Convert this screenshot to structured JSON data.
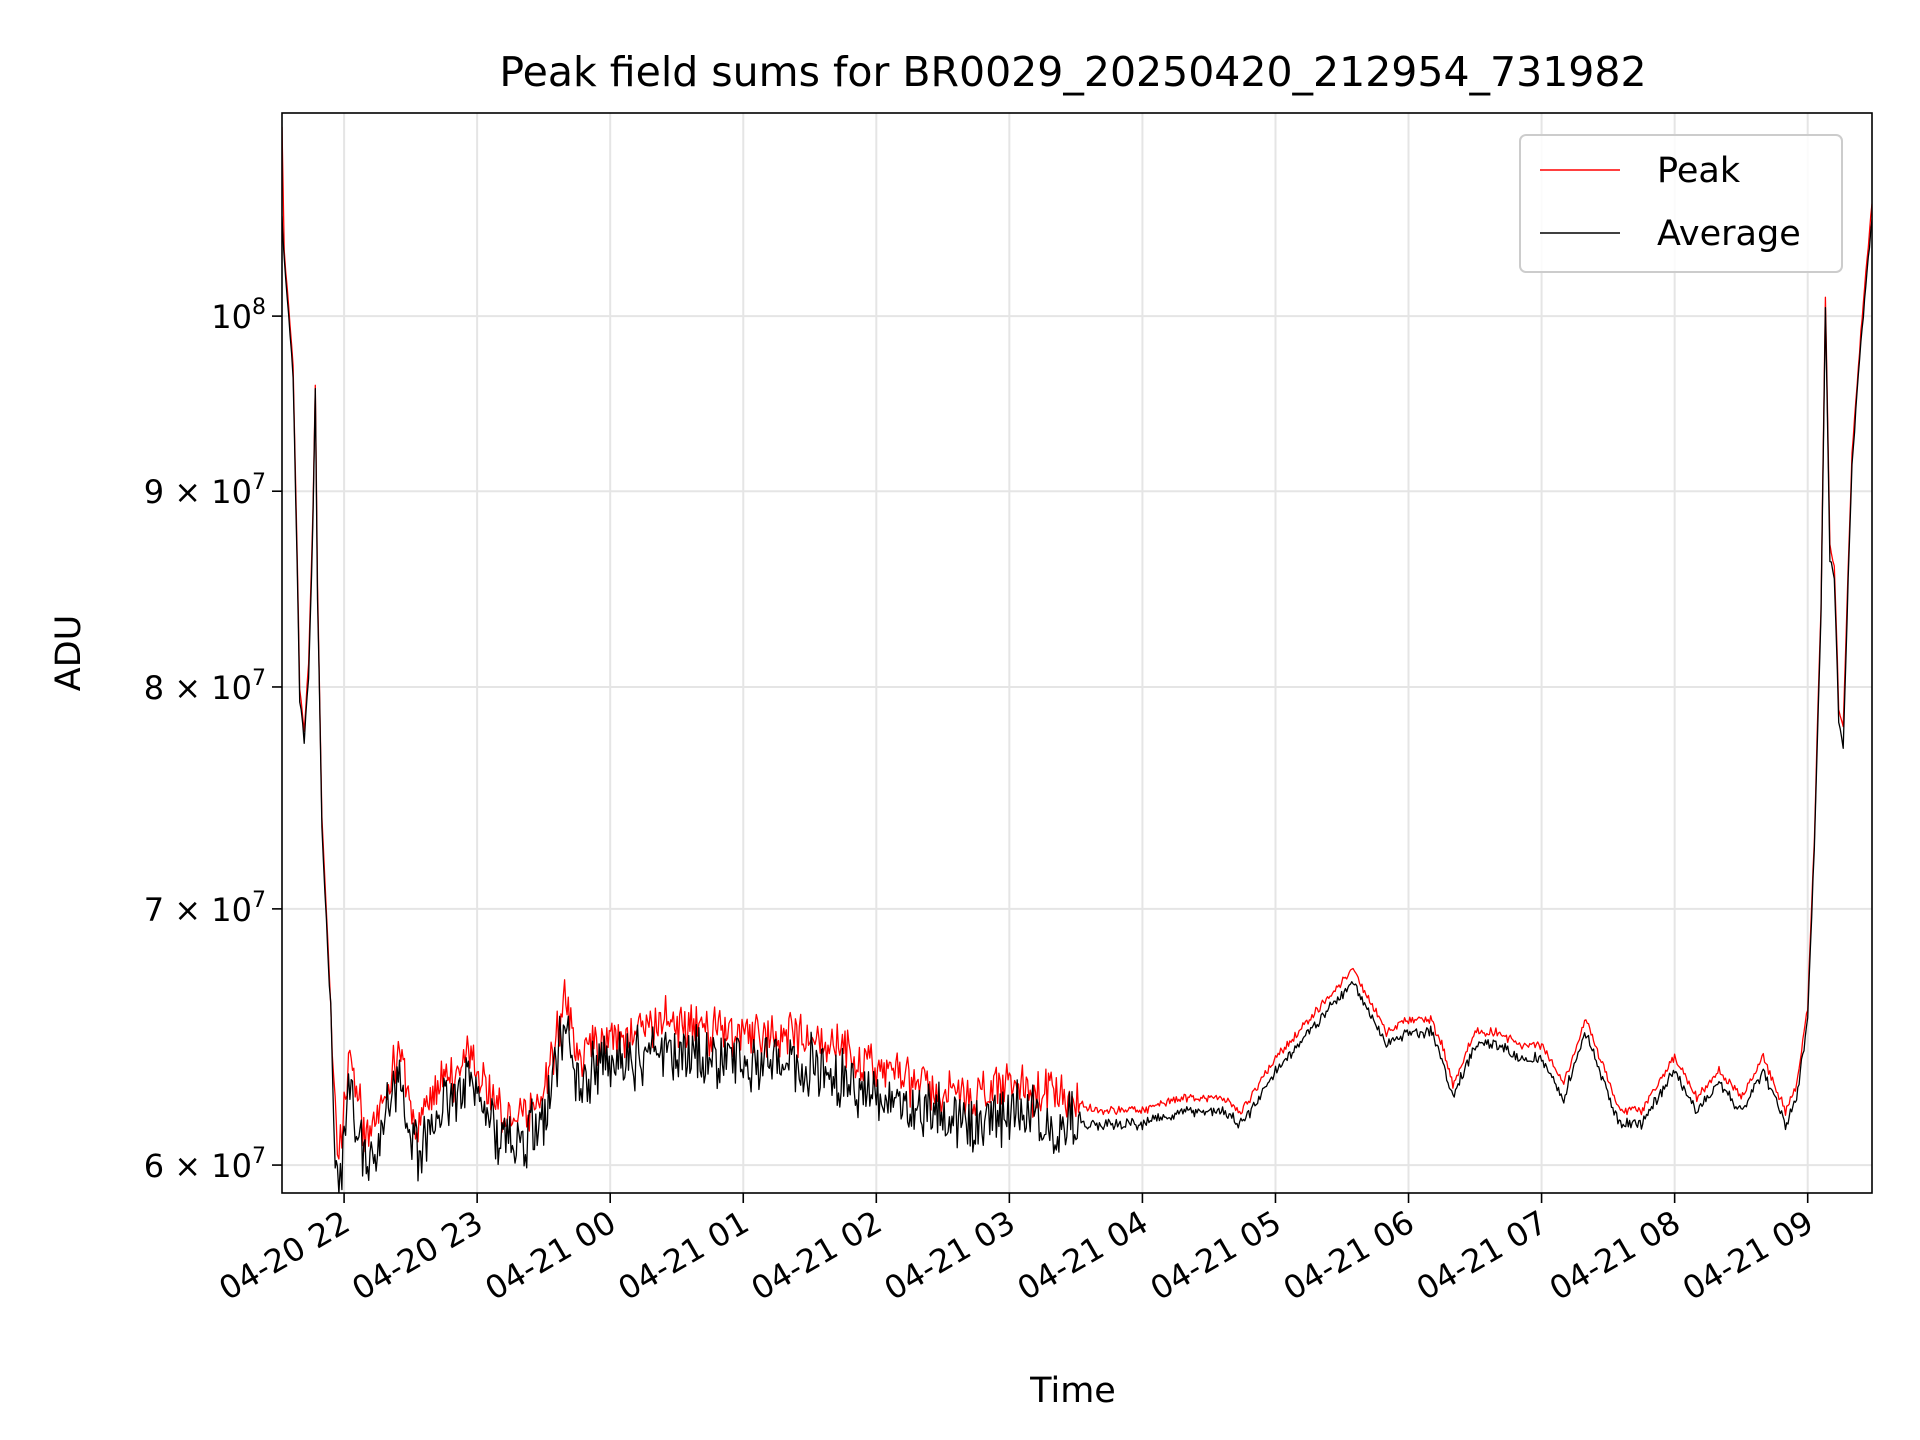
{
  "colors": {
    "peak": "#ff0000",
    "average": "#000000",
    "grid": "#e5e5e5",
    "axis": "#000000",
    "legend_border": "#cccccc"
  },
  "chart_data": {
    "type": "line",
    "title": "Peak field sums for BR0029_20250420_212954_731982",
    "xlabel": "Time",
    "ylabel": "ADU",
    "yscale": "log",
    "xlim": [
      "2025-04-20 21:32",
      "2025-04-21 09:29"
    ],
    "ylim": [
      59000000,
      113000000
    ],
    "grid": true,
    "legend_position": "top-right",
    "x_ticks": [
      "2025-04-20 22:00",
      "2025-04-20 23:00",
      "2025-04-21 00:00",
      "2025-04-21 01:00",
      "2025-04-21 02:00",
      "2025-04-21 03:00",
      "2025-04-21 04:00",
      "2025-04-21 05:00",
      "2025-04-21 06:00",
      "2025-04-21 07:00",
      "2025-04-21 08:00",
      "2025-04-21 09:00"
    ],
    "x_tick_labels": [
      "04-20 22",
      "04-20 23",
      "04-21 00",
      "04-21 01",
      "04-21 02",
      "04-21 03",
      "04-21 04",
      "04-21 05",
      "04-21 06",
      "04-21 07",
      "04-21 08",
      "04-21 09"
    ],
    "y_ticks": [
      {
        "value": 100000000,
        "label": "10",
        "exp": "8",
        "mult": ""
      },
      {
        "value": 90000000,
        "label": "9 × 10",
        "exp": "7",
        "mult": ""
      },
      {
        "value": 80000000,
        "label": "8 × 10",
        "exp": "7",
        "mult": ""
      },
      {
        "value": 70000000,
        "label": "7 × 10",
        "exp": "7",
        "mult": ""
      },
      {
        "value": 60000000,
        "label": "6 × 10",
        "exp": "7",
        "mult": ""
      }
    ],
    "series": [
      {
        "name": "Peak",
        "color": "#ff0000",
        "jitter": 2000000,
        "x": [
          "2025-04-20 21:32",
          "2025-04-20 21:33",
          "2025-04-20 21:35",
          "2025-04-20 21:37",
          "2025-04-20 21:40",
          "2025-04-20 21:42",
          "2025-04-20 21:44",
          "2025-04-20 21:46",
          "2025-04-20 21:47",
          "2025-04-20 21:48",
          "2025-04-20 21:50",
          "2025-04-20 21:52",
          "2025-04-20 21:54",
          "2025-04-20 21:56",
          "2025-04-20 21:57",
          "2025-04-20 21:59",
          "2025-04-20 22:00",
          "2025-04-20 22:02",
          "2025-04-20 22:05",
          "2025-04-20 22:10",
          "2025-04-20 22:15",
          "2025-04-20 22:20",
          "2025-04-20 22:25",
          "2025-04-20 22:30",
          "2025-04-20 22:35",
          "2025-04-20 22:40",
          "2025-04-20 22:45",
          "2025-04-20 22:50",
          "2025-04-20 22:55",
          "2025-04-20 23:00",
          "2025-04-20 23:05",
          "2025-04-20 23:10",
          "2025-04-20 23:20",
          "2025-04-20 23:30",
          "2025-04-20 23:35",
          "2025-04-20 23:40",
          "2025-04-20 23:45",
          "2025-04-20 23:55",
          "2025-04-21 00:10",
          "2025-04-21 00:25",
          "2025-04-21 00:40",
          "2025-04-21 01:00",
          "2025-04-21 01:20",
          "2025-04-21 01:40",
          "2025-04-21 02:00",
          "2025-04-21 02:20",
          "2025-04-21 02:40",
          "2025-04-21 03:00",
          "2025-04-21 03:20",
          "2025-04-21 03:40",
          "2025-04-21 04:00",
          "2025-04-21 04:20",
          "2025-04-21 04:35",
          "2025-04-21 04:45",
          "2025-04-21 05:00",
          "2025-04-21 05:10",
          "2025-04-21 05:20",
          "2025-04-21 05:35",
          "2025-04-21 05:50",
          "2025-04-21 06:00",
          "2025-04-21 06:10",
          "2025-04-21 06:15",
          "2025-04-21 06:20",
          "2025-04-21 06:30",
          "2025-04-21 06:40",
          "2025-04-21 06:50",
          "2025-04-21 07:00",
          "2025-04-21 07:10",
          "2025-04-21 07:20",
          "2025-04-21 07:35",
          "2025-04-21 07:45",
          "2025-04-21 08:00",
          "2025-04-21 08:10",
          "2025-04-21 08:20",
          "2025-04-21 08:30",
          "2025-04-21 08:40",
          "2025-04-21 08:50",
          "2025-04-21 08:55",
          "2025-04-21 09:00",
          "2025-04-21 09:03",
          "2025-04-21 09:06",
          "2025-04-21 09:08",
          "2025-04-21 09:10",
          "2025-04-21 09:12",
          "2025-04-21 09:14",
          "2025-04-21 09:16",
          "2025-04-21 09:20",
          "2025-04-21 09:24",
          "2025-04-21 09:29"
        ],
        "values": [
          112000000,
          104000000,
          100500000,
          97000000,
          80000000,
          78000000,
          81000000,
          89000000,
          96000000,
          85000000,
          74000000,
          70000000,
          66000000,
          62000000,
          60500000,
          61000000,
          62000000,
          64000000,
          63000000,
          61000000,
          61500000,
          63000000,
          64500000,
          62000000,
          61500000,
          62500000,
          63500000,
          63000000,
          64500000,
          63500000,
          63000000,
          62000000,
          62000000,
          62500000,
          64500000,
          66500000,
          64000000,
          64500000,
          65000000,
          65500000,
          65000000,
          65000000,
          65000000,
          64500000,
          63500000,
          63000000,
          62500000,
          63000000,
          62500000,
          62000000,
          62000000,
          62500000,
          62500000,
          62000000,
          64000000,
          65000000,
          66000000,
          67500000,
          65000000,
          65500000,
          65500000,
          64500000,
          63000000,
          65000000,
          65000000,
          64500000,
          64500000,
          63000000,
          65500000,
          62000000,
          62000000,
          64000000,
          62500000,
          63500000,
          62500000,
          64000000,
          62000000,
          63000000,
          66000000,
          73000000,
          84000000,
          101000000,
          87000000,
          86000000,
          79000000,
          78000000,
          92000000,
          99000000,
          107000000
        ]
      },
      {
        "name": "Average",
        "color": "#000000",
        "jitter": 2600000,
        "x": [
          "2025-04-20 21:32",
          "2025-04-20 21:33",
          "2025-04-20 21:35",
          "2025-04-20 21:37",
          "2025-04-20 21:40",
          "2025-04-20 21:42",
          "2025-04-20 21:44",
          "2025-04-20 21:46",
          "2025-04-20 21:47",
          "2025-04-20 21:48",
          "2025-04-20 21:50",
          "2025-04-20 21:52",
          "2025-04-20 21:54",
          "2025-04-20 21:56",
          "2025-04-20 21:57",
          "2025-04-20 21:59",
          "2025-04-20 22:00",
          "2025-04-20 22:02",
          "2025-04-20 22:05",
          "2025-04-20 22:10",
          "2025-04-20 22:15",
          "2025-04-20 22:20",
          "2025-04-20 22:25",
          "2025-04-20 22:30",
          "2025-04-20 22:35",
          "2025-04-20 22:40",
          "2025-04-20 22:45",
          "2025-04-20 22:50",
          "2025-04-20 22:55",
          "2025-04-20 23:00",
          "2025-04-20 23:05",
          "2025-04-20 23:10",
          "2025-04-20 23:20",
          "2025-04-20 23:30",
          "2025-04-20 23:35",
          "2025-04-20 23:40",
          "2025-04-20 23:45",
          "2025-04-20 23:55",
          "2025-04-21 00:10",
          "2025-04-21 00:25",
          "2025-04-21 00:40",
          "2025-04-21 01:00",
          "2025-04-21 01:20",
          "2025-04-21 01:40",
          "2025-04-21 02:00",
          "2025-04-21 02:20",
          "2025-04-21 02:40",
          "2025-04-21 03:00",
          "2025-04-21 03:20",
          "2025-04-21 03:40",
          "2025-04-21 04:00",
          "2025-04-21 04:20",
          "2025-04-21 04:35",
          "2025-04-21 04:45",
          "2025-04-21 05:00",
          "2025-04-21 05:10",
          "2025-04-21 05:20",
          "2025-04-21 05:35",
          "2025-04-21 05:50",
          "2025-04-21 06:00",
          "2025-04-21 06:10",
          "2025-04-21 06:15",
          "2025-04-21 06:20",
          "2025-04-21 06:30",
          "2025-04-21 06:40",
          "2025-04-21 06:50",
          "2025-04-21 07:00",
          "2025-04-21 07:10",
          "2025-04-21 07:20",
          "2025-04-21 07:35",
          "2025-04-21 07:45",
          "2025-04-21 08:00",
          "2025-04-21 08:10",
          "2025-04-21 08:20",
          "2025-04-21 08:30",
          "2025-04-21 08:40",
          "2025-04-21 08:50",
          "2025-04-21 08:55",
          "2025-04-21 09:00",
          "2025-04-21 09:03",
          "2025-04-21 09:06",
          "2025-04-21 09:08",
          "2025-04-21 09:10",
          "2025-04-21 09:12",
          "2025-04-21 09:14",
          "2025-04-21 09:16",
          "2025-04-21 09:20",
          "2025-04-21 09:24",
          "2025-04-21 09:29"
        ],
        "values": [
          106000000,
          103500000,
          100000000,
          96500000,
          79500000,
          77500000,
          80500000,
          88500000,
          95500000,
          84500000,
          73500000,
          69500000,
          65500000,
          61000000,
          59500000,
          60000000,
          61000000,
          63000000,
          62000000,
          60000000,
          60500000,
          62000000,
          63500000,
          61000000,
          60500000,
          61500000,
          62500000,
          62000000,
          63500000,
          62500000,
          62000000,
          61000000,
          61000000,
          61500000,
          63500000,
          65500000,
          63000000,
          63500000,
          64000000,
          64500000,
          64000000,
          64000000,
          64000000,
          63500000,
          62500000,
          62000000,
          61500000,
          62000000,
          61500000,
          61500000,
          61500000,
          62000000,
          62000000,
          61500000,
          63500000,
          64500000,
          65500000,
          67000000,
          64500000,
          65000000,
          65000000,
          64000000,
          62500000,
          64500000,
          64500000,
          64000000,
          64000000,
          62500000,
          65000000,
          61500000,
          61500000,
          63500000,
          62000000,
          63000000,
          62000000,
          63500000,
          61500000,
          62500000,
          65500000,
          72500000,
          83500000,
          100500000,
          86500000,
          85500000,
          78500000,
          77000000,
          91500000,
          98500000,
          106000000
        ]
      }
    ]
  }
}
